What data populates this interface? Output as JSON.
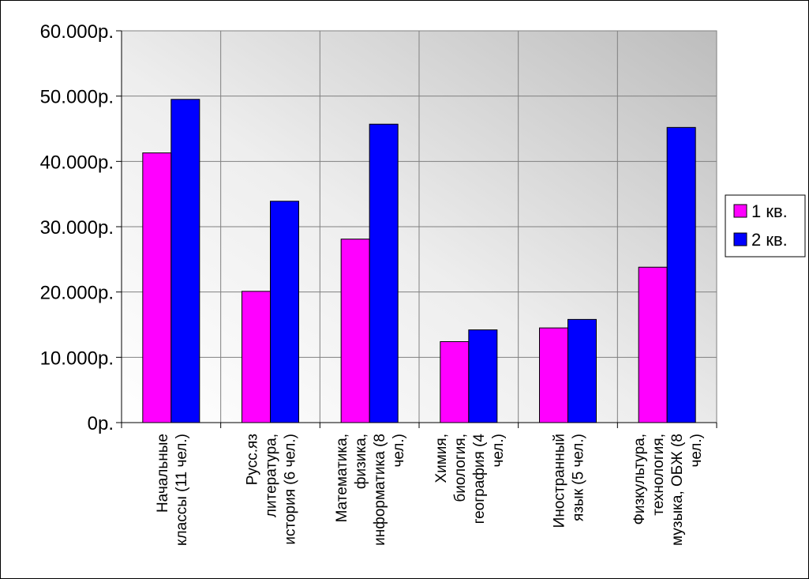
{
  "chart_data": {
    "type": "bar",
    "title": "",
    "xlabel": "",
    "ylabel": "",
    "ylim": [
      0,
      60000
    ],
    "yticks": [
      0,
      10000,
      20000,
      30000,
      40000,
      50000,
      60000
    ],
    "ytick_labels": [
      "0р.",
      "10.000р.",
      "20.000р.",
      "30.000р.",
      "40.000р.",
      "50.000р.",
      "60.000р."
    ],
    "grid": true,
    "legend_position": "right",
    "categories": [
      [
        "Начальные",
        "классы (11 чел.)"
      ],
      [
        "Русс.яз",
        "литература,",
        "история (6 чел.)"
      ],
      [
        "Математика,",
        "физика,",
        "информатика (8",
        "чел.)"
      ],
      [
        "Химия,",
        "биология,",
        "география (4",
        "чел.)"
      ],
      [
        "Иностранный",
        "язык (5 чел.)"
      ],
      [
        "Физкультура,",
        "технология,",
        "музыка, ОБЖ (8",
        "чел.)"
      ]
    ],
    "series": [
      {
        "name": "1 кв.",
        "color": "#ff00ff",
        "values": [
          41300,
          20100,
          28100,
          12400,
          14500,
          23800
        ]
      },
      {
        "name": "2 кв.",
        "color": "#0000ff",
        "values": [
          49500,
          33900,
          45700,
          14200,
          15800,
          45200
        ]
      }
    ]
  }
}
